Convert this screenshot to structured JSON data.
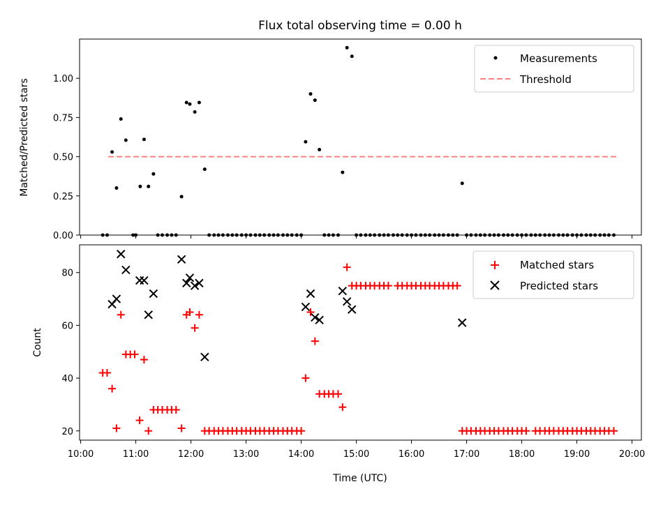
{
  "title": "Flux total observing time = 0.00 h",
  "chart_data": [
    {
      "type": "scatter",
      "ylabel": "Matched/Predicted stars",
      "ylim": [
        0,
        1.25
      ],
      "yticks": [
        "0.00",
        "0.25",
        "0.50",
        "0.75",
        "1.00"
      ],
      "legend_placement": "top-right",
      "legend": [
        "Measurements",
        "Threshold"
      ],
      "threshold": {
        "name": "Threshold",
        "x": [
          10.5,
          19.75
        ],
        "y": 0.5,
        "color": "#ff7f7f"
      },
      "series": [
        {
          "name": "Measurements",
          "color": "#000000",
          "points": [
            [
              10.4,
              0
            ],
            [
              10.48,
              0
            ],
            [
              10.57,
              0.53
            ],
            [
              10.65,
              0.3
            ],
            [
              10.73,
              0.74
            ],
            [
              10.82,
              0.605
            ],
            [
              10.95,
              0
            ],
            [
              11.0,
              0
            ],
            [
              11.08,
              0.31
            ],
            [
              11.15,
              0.61
            ],
            [
              11.23,
              0.31
            ],
            [
              11.32,
              0.39
            ],
            [
              11.4,
              0
            ],
            [
              11.48,
              0
            ],
            [
              11.57,
              0
            ],
            [
              11.65,
              0
            ],
            [
              11.73,
              0
            ],
            [
              11.83,
              0.245
            ],
            [
              11.92,
              0.845
            ],
            [
              11.98,
              0.835
            ],
            [
              12.07,
              0.785
            ],
            [
              12.15,
              0.845
            ],
            [
              12.25,
              0.42
            ],
            [
              12.33,
              0
            ],
            [
              12.42,
              0
            ],
            [
              12.5,
              0
            ],
            [
              12.58,
              0
            ],
            [
              12.67,
              0
            ],
            [
              12.75,
              0
            ],
            [
              12.83,
              0
            ],
            [
              12.92,
              0
            ],
            [
              13.0,
              0
            ],
            [
              13.08,
              0
            ],
            [
              13.17,
              0
            ],
            [
              13.25,
              0
            ],
            [
              13.33,
              0
            ],
            [
              13.42,
              0
            ],
            [
              13.5,
              0
            ],
            [
              13.58,
              0
            ],
            [
              13.67,
              0
            ],
            [
              13.75,
              0
            ],
            [
              13.83,
              0
            ],
            [
              13.92,
              0
            ],
            [
              14.0,
              0
            ],
            [
              14.08,
              0.595
            ],
            [
              14.17,
              0.9
            ],
            [
              14.25,
              0.86
            ],
            [
              14.33,
              0.545
            ],
            [
              14.42,
              0
            ],
            [
              14.5,
              0
            ],
            [
              14.58,
              0
            ],
            [
              14.67,
              0
            ],
            [
              14.75,
              0.4
            ],
            [
              14.83,
              1.195
            ],
            [
              14.92,
              1.14
            ],
            [
              15.0,
              0
            ],
            [
              15.08,
              0
            ],
            [
              15.17,
              0
            ],
            [
              15.25,
              0
            ],
            [
              15.33,
              0
            ],
            [
              15.42,
              0
            ],
            [
              15.5,
              0
            ],
            [
              15.58,
              0
            ],
            [
              15.67,
              0
            ],
            [
              15.75,
              0
            ],
            [
              15.83,
              0
            ],
            [
              15.92,
              0
            ],
            [
              16.0,
              0
            ],
            [
              16.08,
              0
            ],
            [
              16.17,
              0
            ],
            [
              16.25,
              0
            ],
            [
              16.33,
              0
            ],
            [
              16.42,
              0
            ],
            [
              16.5,
              0
            ],
            [
              16.58,
              0
            ],
            [
              16.67,
              0
            ],
            [
              16.75,
              0
            ],
            [
              16.83,
              0
            ],
            [
              16.92,
              0.33
            ],
            [
              17.0,
              0
            ],
            [
              17.08,
              0
            ],
            [
              17.17,
              0
            ],
            [
              17.25,
              0
            ],
            [
              17.33,
              0
            ],
            [
              17.42,
              0
            ],
            [
              17.5,
              0
            ],
            [
              17.58,
              0
            ],
            [
              17.67,
              0
            ],
            [
              17.75,
              0
            ],
            [
              17.83,
              0
            ],
            [
              17.92,
              0
            ],
            [
              18.0,
              0
            ],
            [
              18.08,
              0
            ],
            [
              18.17,
              0
            ],
            [
              18.25,
              0
            ],
            [
              18.33,
              0
            ],
            [
              18.42,
              0
            ],
            [
              18.5,
              0
            ],
            [
              18.58,
              0
            ],
            [
              18.67,
              0
            ],
            [
              18.75,
              0
            ],
            [
              18.83,
              0
            ],
            [
              18.92,
              0
            ],
            [
              19.0,
              0
            ],
            [
              19.08,
              0
            ],
            [
              19.17,
              0
            ],
            [
              19.25,
              0
            ],
            [
              19.33,
              0
            ],
            [
              19.42,
              0
            ],
            [
              19.5,
              0
            ],
            [
              19.58,
              0
            ],
            [
              19.67,
              0
            ]
          ]
        }
      ]
    },
    {
      "type": "scatter",
      "ylabel": "Count",
      "xlabel": "Time (UTC)",
      "xlim": [
        9.98,
        20.17
      ],
      "ylim": [
        16.5,
        90.5
      ],
      "yticks": [
        "20",
        "40",
        "60",
        "80"
      ],
      "xticks": [
        "10:00",
        "11:00",
        "12:00",
        "13:00",
        "14:00",
        "15:00",
        "16:00",
        "17:00",
        "18:00",
        "19:00",
        "20:00"
      ],
      "legend_placement": "top-right",
      "legend": [
        "Matched stars",
        "Predicted stars"
      ],
      "series": [
        {
          "name": "Matched stars",
          "marker": "plus",
          "color": "#ff0000",
          "points": [
            [
              10.4,
              42
            ],
            [
              10.48,
              42
            ],
            [
              10.57,
              36
            ],
            [
              10.65,
              21
            ],
            [
              10.73,
              64
            ],
            [
              10.82,
              49
            ],
            [
              10.9,
              49
            ],
            [
              10.98,
              49
            ],
            [
              11.07,
              24
            ],
            [
              11.15,
              47
            ],
            [
              11.23,
              20
            ],
            [
              11.32,
              28
            ],
            [
              11.4,
              28
            ],
            [
              11.48,
              28
            ],
            [
              11.57,
              28
            ],
            [
              11.65,
              28
            ],
            [
              11.73,
              28
            ],
            [
              11.83,
              21
            ],
            [
              11.92,
              64
            ],
            [
              11.98,
              65
            ],
            [
              12.07,
              59
            ],
            [
              12.15,
              64
            ],
            [
              12.25,
              20
            ],
            [
              12.33,
              20
            ],
            [
              12.42,
              20
            ],
            [
              12.5,
              20
            ],
            [
              12.58,
              20
            ],
            [
              12.67,
              20
            ],
            [
              12.75,
              20
            ],
            [
              12.83,
              20
            ],
            [
              12.92,
              20
            ],
            [
              13.0,
              20
            ],
            [
              13.08,
              20
            ],
            [
              13.17,
              20
            ],
            [
              13.25,
              20
            ],
            [
              13.33,
              20
            ],
            [
              13.42,
              20
            ],
            [
              13.5,
              20
            ],
            [
              13.58,
              20
            ],
            [
              13.67,
              20
            ],
            [
              13.75,
              20
            ],
            [
              13.83,
              20
            ],
            [
              13.92,
              20
            ],
            [
              14.0,
              20
            ],
            [
              14.08,
              40
            ],
            [
              14.17,
              65
            ],
            [
              14.25,
              54
            ],
            [
              14.33,
              34
            ],
            [
              14.42,
              34
            ],
            [
              14.5,
              34
            ],
            [
              14.58,
              34
            ],
            [
              14.67,
              34
            ],
            [
              14.75,
              29
            ],
            [
              14.83,
              82
            ],
            [
              14.92,
              75
            ],
            [
              15.0,
              75
            ],
            [
              15.08,
              75
            ],
            [
              15.17,
              75
            ],
            [
              15.25,
              75
            ],
            [
              15.33,
              75
            ],
            [
              15.42,
              75
            ],
            [
              15.5,
              75
            ],
            [
              15.58,
              75
            ],
            [
              15.75,
              75
            ],
            [
              15.83,
              75
            ],
            [
              15.92,
              75
            ],
            [
              16.0,
              75
            ],
            [
              16.08,
              75
            ],
            [
              16.17,
              75
            ],
            [
              16.25,
              75
            ],
            [
              16.33,
              75
            ],
            [
              16.42,
              75
            ],
            [
              16.5,
              75
            ],
            [
              16.58,
              75
            ],
            [
              16.67,
              75
            ],
            [
              16.75,
              75
            ],
            [
              16.83,
              75
            ],
            [
              16.92,
              20
            ],
            [
              17.0,
              20
            ],
            [
              17.08,
              20
            ],
            [
              17.17,
              20
            ],
            [
              17.25,
              20
            ],
            [
              17.33,
              20
            ],
            [
              17.42,
              20
            ],
            [
              17.5,
              20
            ],
            [
              17.58,
              20
            ],
            [
              17.67,
              20
            ],
            [
              17.75,
              20
            ],
            [
              17.83,
              20
            ],
            [
              17.92,
              20
            ],
            [
              18.0,
              20
            ],
            [
              18.08,
              20
            ],
            [
              18.25,
              20
            ],
            [
              18.33,
              20
            ],
            [
              18.42,
              20
            ],
            [
              18.5,
              20
            ],
            [
              18.58,
              20
            ],
            [
              18.67,
              20
            ],
            [
              18.75,
              20
            ],
            [
              18.83,
              20
            ],
            [
              18.92,
              20
            ],
            [
              19.0,
              20
            ],
            [
              19.08,
              20
            ],
            [
              19.17,
              20
            ],
            [
              19.25,
              20
            ],
            [
              19.33,
              20
            ],
            [
              19.42,
              20
            ],
            [
              19.5,
              20
            ],
            [
              19.58,
              20
            ],
            [
              19.67,
              20
            ]
          ]
        },
        {
          "name": "Predicted stars",
          "marker": "x",
          "color": "#000000",
          "points": [
            [
              10.57,
              68
            ],
            [
              10.65,
              70
            ],
            [
              10.73,
              87
            ],
            [
              10.82,
              81
            ],
            [
              11.07,
              77
            ],
            [
              11.15,
              77
            ],
            [
              11.23,
              64
            ],
            [
              11.32,
              72
            ],
            [
              11.83,
              85
            ],
            [
              11.92,
              76
            ],
            [
              11.98,
              78
            ],
            [
              12.07,
              75
            ],
            [
              12.15,
              76
            ],
            [
              12.25,
              48
            ],
            [
              14.08,
              67
            ],
            [
              14.17,
              72
            ],
            [
              14.25,
              63
            ],
            [
              14.33,
              62
            ],
            [
              14.75,
              73
            ],
            [
              14.83,
              69
            ],
            [
              14.92,
              66
            ],
            [
              16.92,
              61
            ]
          ]
        }
      ]
    }
  ]
}
